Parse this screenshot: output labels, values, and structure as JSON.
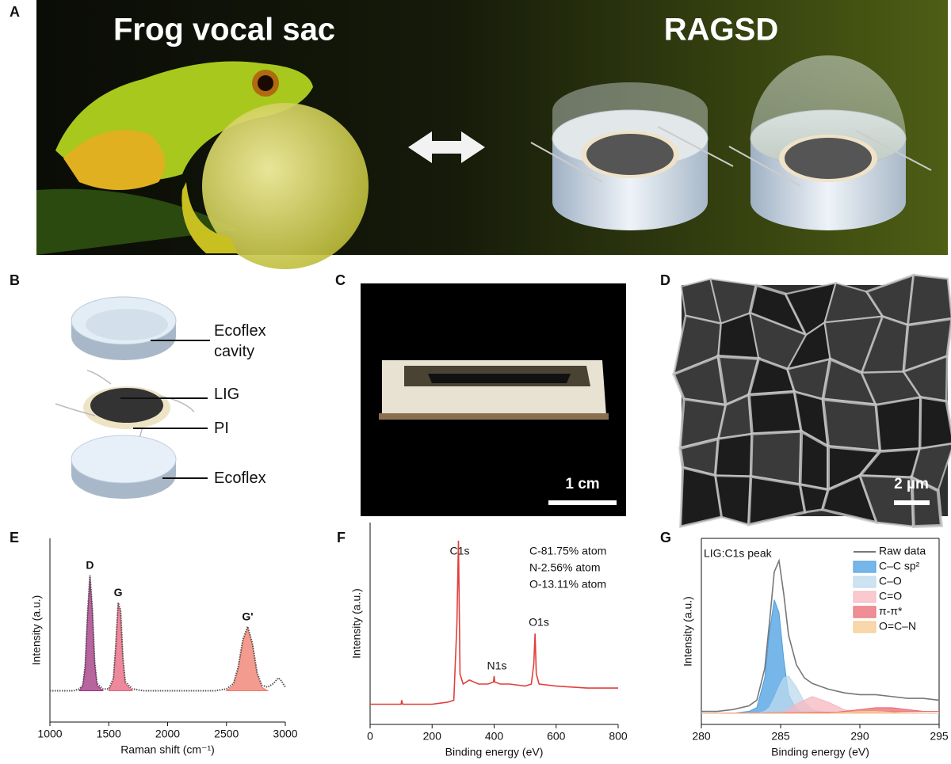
{
  "panels": {
    "A": {
      "label": "A",
      "left_title": "Frog vocal sac",
      "right_title": "RAGSD"
    },
    "B": {
      "label": "B",
      "callouts": [
        "Ecoflex cavity",
        "LIG",
        "PI",
        "Ecoflex"
      ]
    },
    "C": {
      "label": "C",
      "scale_bar": "1 cm"
    },
    "D": {
      "label": "D",
      "scale_bar": "2 µm"
    }
  },
  "chart_data": [
    {
      "type": "line",
      "panel_label": "E",
      "xlabel": "Raman shift (cm⁻¹)",
      "ylabel": "Intensity (a.u.)",
      "x": [
        1000,
        1100,
        1200,
        1250,
        1280,
        1300,
        1320,
        1340,
        1360,
        1380,
        1400,
        1450,
        1500,
        1540,
        1560,
        1580,
        1600,
        1620,
        1640,
        1700,
        1800,
        2000,
        2200,
        2400,
        2500,
        2560,
        2600,
        2640,
        2680,
        2720,
        2760,
        2800,
        2850,
        2900,
        2940,
        2960,
        3000
      ],
      "xlim": [
        1000,
        3000
      ],
      "xticks": [
        1000,
        1500,
        2000,
        2500,
        3000
      ],
      "ylim": [
        0,
        1
      ],
      "peak_labels": true,
      "series": [
        {
          "name": "D",
          "color": "#a0307f",
          "fill": true,
          "values": [
            null,
            null,
            null,
            0.17,
            0.2,
            0.3,
            0.58,
            0.79,
            0.61,
            0.32,
            0.2,
            0.17,
            null,
            null,
            null,
            null,
            null,
            null,
            null,
            null,
            null,
            null,
            null,
            null,
            null,
            null,
            null,
            null,
            null,
            null,
            null,
            null,
            null,
            null,
            null,
            null,
            null
          ]
        },
        {
          "name": "G",
          "color": "#e8607a",
          "fill": true,
          "values": [
            null,
            null,
            null,
            null,
            null,
            null,
            null,
            null,
            null,
            null,
            null,
            null,
            0.17,
            0.23,
            0.41,
            0.64,
            0.6,
            0.34,
            0.21,
            0.17,
            null,
            null,
            null,
            null,
            null,
            null,
            null,
            null,
            null,
            null,
            null,
            null,
            null,
            null,
            null,
            null,
            null
          ]
        },
        {
          "name": "G'",
          "color": "#f07a6a",
          "fill": true,
          "values": [
            null,
            null,
            null,
            null,
            null,
            null,
            null,
            null,
            null,
            null,
            null,
            null,
            null,
            null,
            null,
            null,
            null,
            null,
            null,
            null,
            null,
            null,
            null,
            null,
            0.17,
            0.2,
            0.29,
            0.44,
            0.51,
            0.42,
            0.26,
            0.19,
            0.17,
            null,
            null,
            null,
            null
          ]
        },
        {
          "color": "#555555",
          "dotted": true,
          "values": [
            0.17,
            0.17,
            0.17,
            0.18,
            0.2,
            0.31,
            0.59,
            0.8,
            0.62,
            0.33,
            0.21,
            0.18,
            0.18,
            0.24,
            0.42,
            0.65,
            0.61,
            0.35,
            0.22,
            0.18,
            0.17,
            0.17,
            0.17,
            0.17,
            0.18,
            0.21,
            0.3,
            0.45,
            0.52,
            0.43,
            0.27,
            0.2,
            0.19,
            0.21,
            0.24,
            0.23,
            0.19
          ]
        }
      ]
    },
    {
      "type": "line",
      "panel_label": "F",
      "xlabel": "Binding energy (eV)",
      "ylabel": "Intensity (a.u.)",
      "x": [
        0,
        50,
        100,
        102,
        105,
        150,
        200,
        250,
        270,
        280,
        285,
        290,
        300,
        320,
        350,
        380,
        398,
        400,
        402,
        420,
        450,
        500,
        520,
        528,
        532,
        536,
        545,
        600,
        700,
        800
      ],
      "xlim": [
        0,
        800
      ],
      "xticks": [
        0,
        200,
        400,
        600,
        800
      ],
      "ylim": [
        0,
        1
      ],
      "annotations": [
        "C1s",
        "N1s",
        "O1s",
        "C-81.75% atom",
        "N-2.56% atom",
        "O-13.11% atom"
      ],
      "series": [
        {
          "color": "#e0403c",
          "values": [
            0.1,
            0.1,
            0.1,
            0.12,
            0.1,
            0.1,
            0.1,
            0.11,
            0.12,
            0.5,
            0.91,
            0.25,
            0.2,
            0.22,
            0.2,
            0.2,
            0.21,
            0.24,
            0.21,
            0.2,
            0.2,
            0.19,
            0.2,
            0.3,
            0.45,
            0.25,
            0.2,
            0.19,
            0.18,
            0.18
          ]
        }
      ]
    },
    {
      "type": "line",
      "panel_label": "G",
      "xlabel": "Binding energy (eV)",
      "ylabel": "Intensity (a.u.)",
      "x": [
        280,
        281,
        282,
        283,
        283.5,
        284,
        284.3,
        284.6,
        284.9,
        285.2,
        285.5,
        286,
        286.5,
        287,
        288,
        289,
        290,
        291,
        292,
        293,
        294,
        295
      ],
      "xlim": [
        280,
        295
      ],
      "xticks": [
        280,
        285,
        290,
        295
      ],
      "ylim": [
        0,
        1
      ],
      "frame": true,
      "legend": "upper right",
      "annotations": [
        "LIG:C1s peak"
      ],
      "series": [
        {
          "name": "Raw data",
          "color": "#777777",
          "values": [
            0.07,
            0.07,
            0.08,
            0.1,
            0.13,
            0.3,
            0.55,
            0.82,
            0.88,
            0.7,
            0.48,
            0.32,
            0.25,
            0.22,
            0.19,
            0.17,
            0.16,
            0.16,
            0.15,
            0.14,
            0.14,
            0.13
          ]
        },
        {
          "name": "C–C sp²",
          "color": "#4a9ee0",
          "fill": true,
          "values": [
            0.06,
            0.06,
            0.06,
            0.07,
            0.09,
            0.25,
            0.5,
            0.67,
            0.6,
            0.35,
            0.16,
            0.08,
            0.06,
            0.06,
            0.06,
            0.06,
            0.06,
            0.06,
            0.06,
            0.06,
            0.06,
            0.06
          ]
        },
        {
          "name": "C–O",
          "color": "#bcd9ee",
          "fill": true,
          "values": [
            0.06,
            0.06,
            0.06,
            0.06,
            0.06,
            0.07,
            0.09,
            0.14,
            0.2,
            0.25,
            0.26,
            0.2,
            0.12,
            0.08,
            0.06,
            0.06,
            0.06,
            0.06,
            0.06,
            0.06,
            0.06,
            0.06
          ]
        },
        {
          "name": "C=O",
          "color": "#f6b7bf",
          "fill": true,
          "values": [
            0.06,
            0.06,
            0.06,
            0.06,
            0.06,
            0.06,
            0.06,
            0.06,
            0.06,
            0.07,
            0.08,
            0.11,
            0.13,
            0.15,
            0.12,
            0.08,
            0.06,
            0.06,
            0.06,
            0.06,
            0.06,
            0.06
          ]
        },
        {
          "name": "π-π*",
          "color": "#ea6a72",
          "fill": true,
          "values": [
            0.06,
            0.06,
            0.06,
            0.06,
            0.06,
            0.06,
            0.06,
            0.06,
            0.06,
            0.06,
            0.06,
            0.06,
            0.06,
            0.06,
            0.06,
            0.07,
            0.08,
            0.09,
            0.09,
            0.08,
            0.07,
            0.07
          ]
        },
        {
          "name": "O=C–N",
          "color": "#f5c98e",
          "fill": true,
          "values": [
            0.06,
            0.06,
            0.06,
            0.06,
            0.06,
            0.06,
            0.06,
            0.06,
            0.06,
            0.06,
            0.06,
            0.06,
            0.06,
            0.06,
            0.06,
            0.065,
            0.07,
            0.07,
            0.065,
            0.06,
            0.06,
            0.06
          ]
        }
      ]
    }
  ]
}
